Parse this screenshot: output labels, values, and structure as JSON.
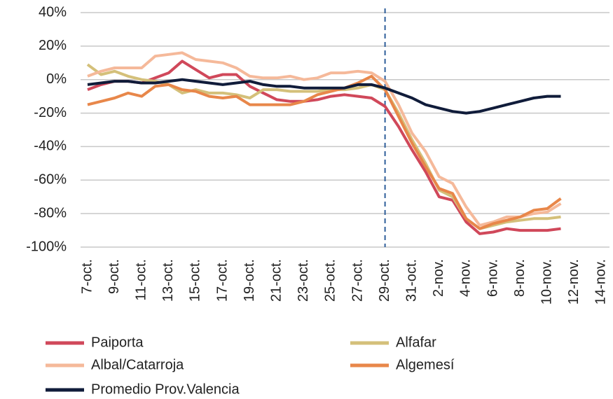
{
  "chart_data": {
    "type": "line",
    "categories": [
      "7-oct.",
      null,
      "9-oct.",
      null,
      "11-oct.",
      null,
      "13-oct.",
      null,
      "15-oct.",
      null,
      "17-oct.",
      null,
      "19-oct.",
      null,
      "21-oct.",
      null,
      "23-oct.",
      null,
      "25-oct.",
      null,
      "27-oct.",
      null,
      "29-oct.",
      null,
      "31-oct.",
      null,
      "2-nov.",
      null,
      "4-nov.",
      null,
      "6-nov.",
      null,
      "8-nov.",
      null,
      "10-nov.",
      null,
      "12-nov.",
      null,
      "14-nov."
    ],
    "series": [
      {
        "name": "Paiporta",
        "color": "#d0485a",
        "values": [
          -6,
          -3,
          -1,
          -1,
          -2,
          1,
          4,
          11,
          6,
          1,
          3,
          3,
          -4,
          -8,
          -12,
          -13,
          -13,
          -12,
          -10,
          -9,
          -10,
          -11,
          -16,
          -28,
          -42,
          -55,
          -70,
          -72,
          -85,
          -92,
          -91,
          -89,
          -90,
          -90,
          -90,
          -89,
          null,
          null,
          null
        ]
      },
      {
        "name": "Alfafar",
        "color": "#d4c07a",
        "values": [
          9,
          3,
          5,
          2,
          0,
          -1,
          -3,
          -8,
          -6,
          -8,
          -8,
          -9,
          -11,
          -6,
          -6,
          -7,
          -7,
          -7,
          -6,
          -6,
          -5,
          -3,
          -6,
          -20,
          -36,
          -50,
          -66,
          -70,
          -83,
          -89,
          -87,
          -85,
          -84,
          -83,
          -83,
          -82,
          null,
          null,
          null
        ]
      },
      {
        "name": "Albal/Catarroja",
        "color": "#f5b99a",
        "values": [
          2,
          5,
          7,
          7,
          7,
          14,
          15,
          16,
          12,
          11,
          10,
          7,
          2,
          1,
          1,
          2,
          0,
          1,
          4,
          4,
          5,
          4,
          -1,
          -15,
          -32,
          -43,
          -58,
          -62,
          -76,
          -87,
          -85,
          -82,
          -82,
          -80,
          -79,
          -74,
          null,
          null,
          null
        ]
      },
      {
        "name": "Algemesí",
        "color": "#e8874a",
        "values": [
          -15,
          -13,
          -11,
          -8,
          -10,
          -4,
          -3,
          -6,
          -7,
          -10,
          -11,
          -10,
          -15,
          -15,
          -15,
          -15,
          -13,
          -9,
          -7,
          -5,
          -2,
          2,
          -6,
          -22,
          -38,
          -52,
          -65,
          -68,
          -83,
          -89,
          -86,
          -84,
          -82,
          -78,
          -77,
          -71,
          null,
          null,
          null
        ]
      },
      {
        "name": "Promedio Prov.Valencia",
        "color": "#101c3a",
        "values": [
          -3,
          -2,
          -1,
          -1,
          -2,
          -2,
          -1,
          0,
          -1,
          -2,
          -3,
          -2,
          -1,
          -3,
          -4,
          -4,
          -5,
          -5,
          -5,
          -5,
          -3,
          -3,
          -5,
          -8,
          -11,
          -15,
          -17,
          -19,
          -20,
          -19,
          -17,
          -15,
          -13,
          -11,
          -10,
          -10,
          null,
          null,
          null
        ]
      }
    ],
    "ylim": [
      -100,
      40
    ],
    "yticks": [
      {
        "value": -100,
        "label": "-100%"
      },
      {
        "value": -80,
        "label": "-80%"
      },
      {
        "value": -60,
        "label": "-60%"
      },
      {
        "value": -40,
        "label": "-40%"
      },
      {
        "value": -20,
        "label": "-20%"
      },
      {
        "value": 0,
        "label": "0%"
      },
      {
        "value": 20,
        "label": "20%"
      },
      {
        "value": 40,
        "label": "40%"
      }
    ],
    "grid": true,
    "reference_line": {
      "x": "29-oct."
    },
    "legend": "bottom"
  }
}
